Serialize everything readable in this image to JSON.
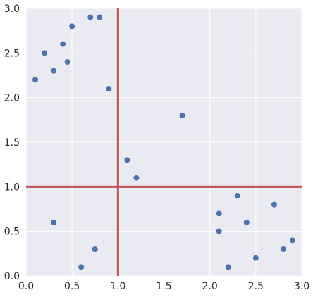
{
  "chart_data": {
    "type": "scatter",
    "title": "",
    "xlabel": "",
    "ylabel": "",
    "xlim": [
      0.0,
      3.0
    ],
    "ylim": [
      0.0,
      3.0
    ],
    "grid": true,
    "xticks": [
      "0.0",
      "0.5",
      "1.0",
      "1.5",
      "2.0",
      "2.5",
      "3.0"
    ],
    "yticks": [
      "0.0",
      "0.5",
      "1.0",
      "1.5",
      "2.0",
      "2.5",
      "3.0"
    ],
    "series": [
      {
        "color": "#4c72b0",
        "points": [
          {
            "x": 0.1,
            "y": 2.2
          },
          {
            "x": 0.2,
            "y": 2.5
          },
          {
            "x": 0.3,
            "y": 2.3
          },
          {
            "x": 0.4,
            "y": 2.6
          },
          {
            "x": 0.45,
            "y": 2.4
          },
          {
            "x": 0.5,
            "y": 2.8
          },
          {
            "x": 0.7,
            "y": 2.9
          },
          {
            "x": 0.8,
            "y": 2.9
          },
          {
            "x": 0.9,
            "y": 2.1
          },
          {
            "x": 1.7,
            "y": 1.8
          },
          {
            "x": 1.1,
            "y": 1.3
          },
          {
            "x": 1.2,
            "y": 1.1
          },
          {
            "x": 0.3,
            "y": 0.6
          },
          {
            "x": 0.75,
            "y": 0.3
          },
          {
            "x": 0.6,
            "y": 0.1
          },
          {
            "x": 2.1,
            "y": 0.7
          },
          {
            "x": 2.1,
            "y": 0.5
          },
          {
            "x": 2.2,
            "y": 0.1
          },
          {
            "x": 2.3,
            "y": 0.9
          },
          {
            "x": 2.4,
            "y": 0.6
          },
          {
            "x": 2.5,
            "y": 0.2
          },
          {
            "x": 2.7,
            "y": 0.8
          },
          {
            "x": 2.8,
            "y": 0.3
          },
          {
            "x": 2.9,
            "y": 0.4
          }
        ]
      }
    ],
    "reference_lines": [
      {
        "orientation": "vertical",
        "x": 1.0,
        "color": "#c44e52"
      },
      {
        "orientation": "horizontal",
        "y": 1.0,
        "color": "#c44e52"
      }
    ],
    "colors": {
      "plot_background": "#eaeaf2",
      "grid": "#ffffff",
      "text": "#262626"
    }
  }
}
